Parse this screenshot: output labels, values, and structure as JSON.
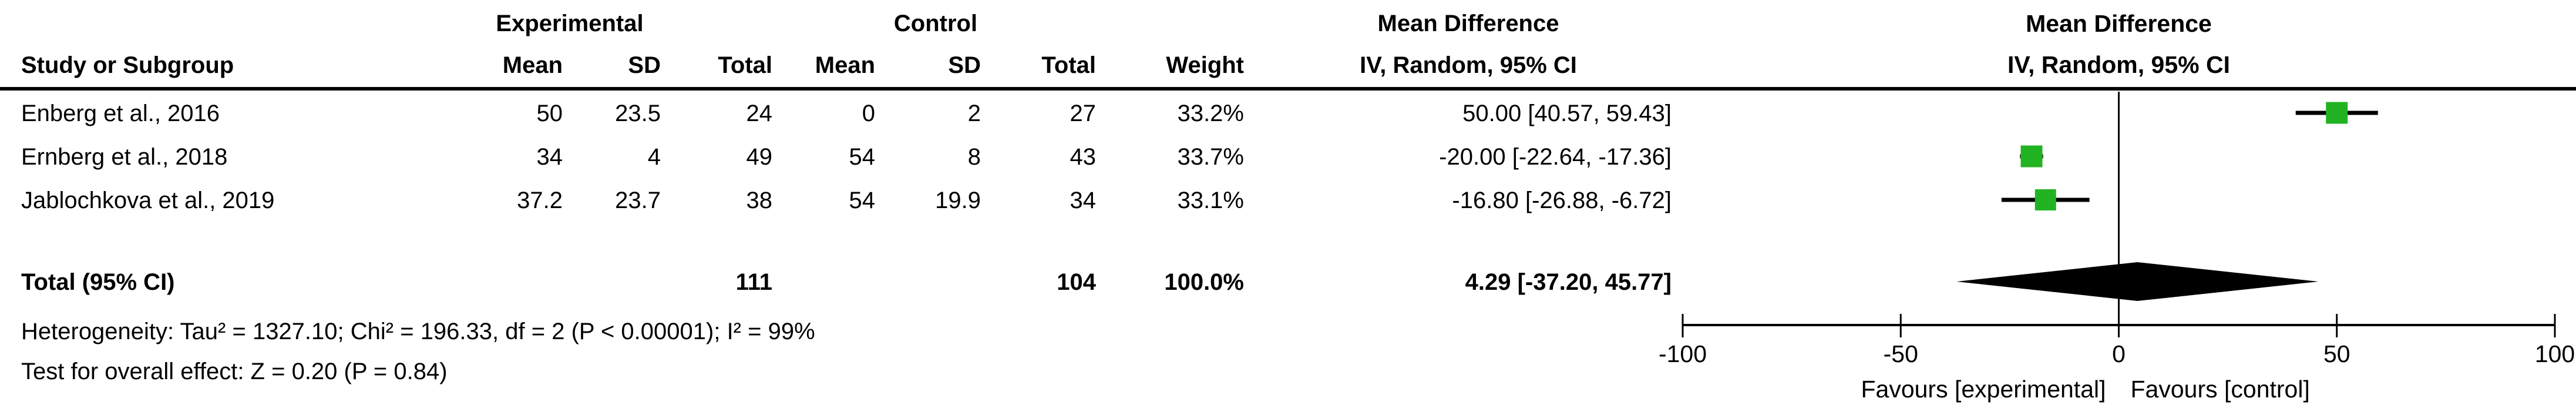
{
  "table": {
    "group_headers": {
      "experimental": "Experimental",
      "control": "Control",
      "mean_difference": "Mean Difference"
    },
    "columns": {
      "study": "Study or Subgroup",
      "mean": "Mean",
      "sd": "SD",
      "total": "Total",
      "mean2": "Mean",
      "sd2": "SD",
      "total2": "Total",
      "weight": "Weight",
      "ci": "IV, Random, 95% CI"
    },
    "studies": [
      {
        "name": "Enberg et al., 2016",
        "exp_mean": "50",
        "exp_sd": "23.5",
        "exp_total": "24",
        "ctl_mean": "0",
        "ctl_sd": "2",
        "ctl_total": "27",
        "weight": "33.2%",
        "ci_text": "50.00 [40.57, 59.43]"
      },
      {
        "name": "Ernberg et al., 2018",
        "exp_mean": "34",
        "exp_sd": "4",
        "exp_total": "49",
        "ctl_mean": "54",
        "ctl_sd": "8",
        "ctl_total": "43",
        "weight": "33.7%",
        "ci_text": "-20.00 [-22.64, -17.36]"
      },
      {
        "name": "Jablochkova et al., 2019",
        "exp_mean": "37.2",
        "exp_sd": "23.7",
        "exp_total": "38",
        "ctl_mean": "54",
        "ctl_sd": "19.9",
        "ctl_total": "34",
        "weight": "33.1%",
        "ci_text": "-16.80 [-26.88, -6.72]"
      }
    ],
    "total": {
      "label": "Total (95% CI)",
      "exp_total": "111",
      "ctl_total": "104",
      "weight": "100.0%",
      "ci_text": "4.29 [-37.20, 45.77]"
    },
    "heterogeneity": "Heterogeneity: Tau² = 1327.10; Chi² = 196.33, df = 2 (P < 0.00001); I² = 99%",
    "overall_effect": "Test for overall effect: Z = 0.20 (P = 0.84)"
  },
  "plot": {
    "header_line1": "Mean Difference",
    "header_line2": "IV, Random, 95% CI",
    "favours_left": "Favours [experimental]",
    "favours_right": "Favours [control]",
    "marker_color": "#22b322",
    "diamond_color": "#000000",
    "line_color": "#000000"
  },
  "chart_data": {
    "type": "forest",
    "title": "Mean Difference, IV, Random, 95% CI",
    "studies": [
      {
        "name": "Enberg et al., 2016",
        "md": 50.0,
        "ci_low": 40.57,
        "ci_high": 59.43,
        "weight_pct": 33.2
      },
      {
        "name": "Ernberg et al., 2018",
        "md": -20.0,
        "ci_low": -22.64,
        "ci_high": -17.36,
        "weight_pct": 33.7
      },
      {
        "name": "Jablochkova et al., 2019",
        "md": -16.8,
        "ci_low": -26.88,
        "ci_high": -6.72,
        "weight_pct": 33.1
      }
    ],
    "total": {
      "label": "Total (95% CI)",
      "md": 4.29,
      "ci_low": -37.2,
      "ci_high": 45.77,
      "weight_pct": 100.0,
      "exp_n": 111,
      "ctl_n": 104
    },
    "axis": {
      "min": -100,
      "max": 100,
      "ticks": [
        -100,
        -50,
        0,
        50,
        100
      ],
      "tick_labels": [
        "-100",
        "-50",
        "0",
        "50",
        "100"
      ]
    },
    "xlabel_left": "Favours [experimental]",
    "xlabel_right": "Favours [control]",
    "heterogeneity": {
      "tau2": 1327.1,
      "chi2": 196.33,
      "df": 2,
      "p_text": "P < 0.00001",
      "i2_pct": 99
    },
    "overall_effect": {
      "z": 0.2,
      "p": 0.84
    }
  }
}
